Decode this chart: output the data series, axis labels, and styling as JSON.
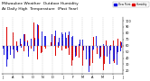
{
  "title": "Milwaukee Weather  Outdoor Humidity",
  "subtitle": "At Daily High  Temperature  (Past Year)",
  "legend_blue": "Dew Point",
  "legend_red": "Humidity",
  "background_color": "#ffffff",
  "plot_bg": "#ffffff",
  "ylim": [
    -45,
    45
  ],
  "yticks": [
    -40,
    -30,
    -20,
    -10,
    0,
    10,
    20,
    30,
    40
  ],
  "ytick_labels": [
    "20",
    "30",
    "40",
    "50",
    "60",
    "70",
    "80",
    "90",
    "100"
  ],
  "n_bars": 365,
  "seed": 42,
  "bar_width": 0.5,
  "blue_color": "#0000dd",
  "red_color": "#dd0000",
  "grid_color": "#bbbbbb",
  "n_grid_lines": 13,
  "title_fontsize": 3.2,
  "tick_fontsize": 2.5,
  "month_labels": [
    "J",
    "A",
    "S",
    "O",
    "N",
    "D",
    "J",
    "F",
    "M",
    "A",
    "M",
    "J",
    "J"
  ]
}
